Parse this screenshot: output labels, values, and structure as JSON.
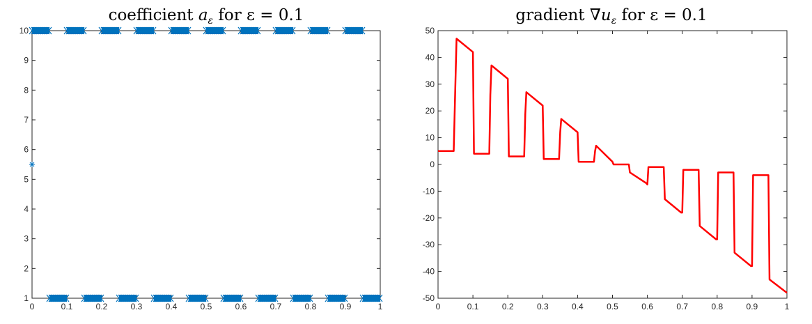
{
  "chart_data": [
    {
      "type": "scatter",
      "title": "coefficient a_ε for ε = 0.1",
      "title_parts": {
        "prefix": "coefficient ",
        "symbol": "a",
        "subscript": "ε",
        "suffix": " for ε = 0.1"
      },
      "xlabel": "",
      "ylabel": "",
      "xlim": [
        0,
        1
      ],
      "ylim": [
        1,
        10
      ],
      "xticks": [
        "0",
        "0.1",
        "0.2",
        "0.3",
        "0.4",
        "0.5",
        "0.6",
        "0.7",
        "0.8",
        "0.9",
        "1"
      ],
      "yticks": [
        "1",
        "2",
        "3",
        "4",
        "5",
        "6",
        "7",
        "8",
        "9",
        "10"
      ],
      "grid": false,
      "marker": "asterisk",
      "color": "#0072BD",
      "series": [
        {
          "label_note": "",
          "segments": [
            {
              "y": 10,
              "x": [
                0.0,
                0.05
              ]
            },
            {
              "y": 10,
              "x": [
                0.1,
                0.15
              ]
            },
            {
              "y": 10,
              "x": [
                0.2,
                0.25
              ]
            },
            {
              "y": 10,
              "x": [
                0.3,
                0.35
              ]
            },
            {
              "y": 10,
              "x": [
                0.4,
                0.45
              ]
            },
            {
              "y": 10,
              "x": [
                0.5,
                0.55
              ]
            },
            {
              "y": 10,
              "x": [
                0.6,
                0.65
              ]
            },
            {
              "y": 10,
              "x": [
                0.7,
                0.75
              ]
            },
            {
              "y": 10,
              "x": [
                0.8,
                0.85
              ]
            },
            {
              "y": 10,
              "x": [
                0.9,
                0.95
              ]
            },
            {
              "y": 1,
              "x": [
                0.05,
                0.1
              ]
            },
            {
              "y": 1,
              "x": [
                0.15,
                0.2
              ]
            },
            {
              "y": 1,
              "x": [
                0.25,
                0.3
              ]
            },
            {
              "y": 1,
              "x": [
                0.35,
                0.4
              ]
            },
            {
              "y": 1,
              "x": [
                0.45,
                0.5
              ]
            },
            {
              "y": 1,
              "x": [
                0.55,
                0.6
              ]
            },
            {
              "y": 1,
              "x": [
                0.65,
                0.7
              ]
            },
            {
              "y": 1,
              "x": [
                0.75,
                0.8
              ]
            },
            {
              "y": 1,
              "x": [
                0.85,
                0.9
              ]
            },
            {
              "y": 1,
              "x": [
                0.95,
                1.0
              ]
            }
          ],
          "isolated_points": [
            {
              "x": 0.0,
              "y": 5.5
            }
          ]
        }
      ]
    },
    {
      "type": "line",
      "title": "gradient ∇u_ε for ε = 0.1",
      "title_parts": {
        "prefix": "gradient ∇",
        "symbol": "u",
        "subscript": "ε",
        "suffix": " for ε = 0.1"
      },
      "xlabel": "",
      "ylabel": "",
      "xlim": [
        0,
        1
      ],
      "ylim": [
        -50,
        50
      ],
      "xticks": [
        "0",
        "0.1",
        "0.2",
        "0.3",
        "0.4",
        "0.5",
        "0.6",
        "0.7",
        "0.8",
        "0.9",
        "1"
      ],
      "yticks": [
        "-50",
        "-40",
        "-30",
        "-20",
        "-10",
        "0",
        "10",
        "20",
        "30",
        "40",
        "50"
      ],
      "grid": false,
      "color": "#FF0000",
      "series": [
        {
          "x": [
            0.0,
            0.045,
            0.05,
            0.053,
            0.1,
            0.103,
            0.147,
            0.15,
            0.153,
            0.2,
            0.203,
            0.247,
            0.25,
            0.253,
            0.3,
            0.303,
            0.347,
            0.35,
            0.353,
            0.4,
            0.403,
            0.447,
            0.45,
            0.453,
            0.5,
            0.503,
            0.547,
            0.55,
            0.597,
            0.6,
            0.603,
            0.647,
            0.65,
            0.697,
            0.7,
            0.703,
            0.747,
            0.75,
            0.797,
            0.8,
            0.803,
            0.847,
            0.85,
            0.897,
            0.9,
            0.903,
            0.947,
            0.95,
            1.0
          ],
          "y": [
            5,
            5,
            31,
            47,
            42,
            4,
            4,
            26,
            37,
            32,
            3,
            3,
            19,
            27,
            22,
            2,
            2,
            12,
            17,
            12,
            1,
            1,
            5,
            7,
            1,
            0,
            0,
            -3,
            -7,
            -7.5,
            -1,
            -1,
            -13,
            -18,
            -18,
            -2,
            -2,
            -23,
            -28,
            -28,
            -3,
            -3,
            -33,
            -38,
            -38,
            -4,
            -4,
            -43,
            -48
          ]
        }
      ]
    }
  ]
}
